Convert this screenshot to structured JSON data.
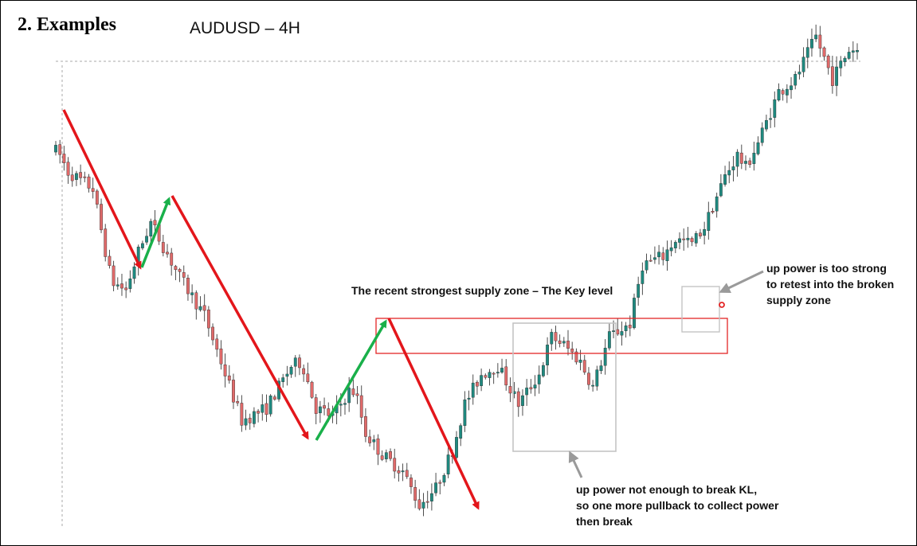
{
  "header": {
    "section_title": "2. Examples",
    "chart_title": "AUDUSD – 4H"
  },
  "colors": {
    "bull_candle": "#1f8a80",
    "bear_candle": "#e06a6a",
    "down_arrow": "#e3161b",
    "up_arrow": "#19b04a",
    "key_level_box": "#e32626",
    "highlight_box": "#bfbfbf",
    "pointer_arrow": "#9a9a9a",
    "dotted_line": "#9a9a9a"
  },
  "annotations": {
    "key_level": "The recent strongest supply zone – The Key level",
    "strong_power": [
      "up power is too strong",
      "to retest into the broken",
      "supply zone"
    ],
    "weak_power": [
      "up power not enough to break KL,",
      "so one more pullback to collect power",
      "then break"
    ]
  },
  "chart_data": {
    "type": "candlestick",
    "symbol": "AUDUSD",
    "timeframe": "4H",
    "series": "price",
    "note": "",
    "anchors": [
      1.5,
      4,
      10,
      14.5,
      18,
      21,
      24,
      31,
      37,
      41,
      46,
      52,
      55,
      58,
      60.5,
      64,
      68,
      72,
      73.5,
      76,
      80,
      85,
      89,
      93,
      97,
      100,
      104,
      108,
      113,
      118,
      121,
      124,
      128,
      131,
      135,
      140,
      143,
      148,
      151,
      155,
      158,
      163,
      166,
      168,
      171,
      176,
      180,
      183,
      185,
      189,
      193
    ],
    "anchor_prices": [
      85,
      80,
      76,
      54,
      52,
      61,
      68,
      55,
      46,
      35,
      21,
      24,
      29,
      34,
      35,
      24,
      22,
      28,
      28,
      18,
      13,
      9,
      1,
      5,
      14,
      25,
      32,
      34,
      25,
      32,
      41,
      39,
      35,
      29,
      41,
      44,
      58,
      60,
      64,
      63,
      67,
      79,
      84,
      81,
      87,
      99,
      102,
      108,
      112,
      102,
      109
    ],
    "candle_count": 195,
    "key_level_zone": [
      39.5,
      43.5
    ],
    "annotated_levels": [
      "The recent strongest supply zone – The Key level"
    ]
  }
}
